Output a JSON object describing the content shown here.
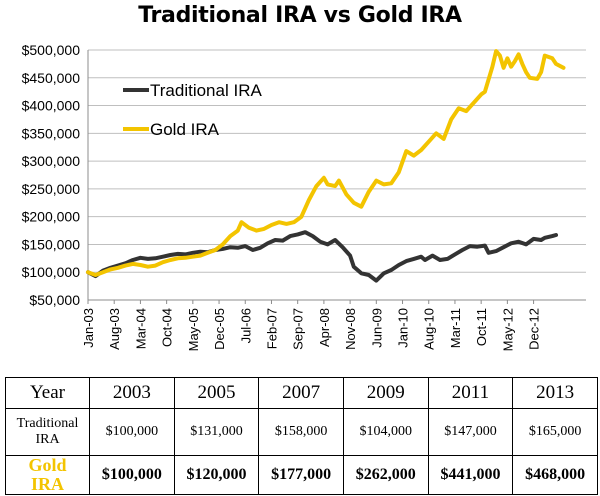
{
  "chart_data": {
    "type": "line",
    "title": "Traditional IRA vs Gold IRA",
    "ylim": [
      50000,
      500000
    ],
    "yticks": [
      50000,
      100000,
      150000,
      200000,
      250000,
      300000,
      350000,
      400000,
      450000,
      500000
    ],
    "ytick_labels": [
      "$50,000",
      "$100,000",
      "$150,000",
      "$200,000",
      "$250,000",
      "$300,000",
      "$350,000",
      "$400,000",
      "$450,000",
      "$500,000"
    ],
    "x_range": [
      0,
      133
    ],
    "xtick_labels": [
      "Jan-03",
      "Aug-03",
      "Mar-04",
      "Oct-04",
      "May-05",
      "Dec-05",
      "Jul-06",
      "Feb-07",
      "Sep-07",
      "Apr-08",
      "Nov-08",
      "Jun-09",
      "Jan-10",
      "Aug-10",
      "Mar-11",
      "Oct-11",
      "May-12",
      "Dec-12"
    ],
    "xtick_positions": [
      0,
      7,
      14,
      21,
      28,
      35,
      42,
      49,
      56,
      63,
      70,
      77,
      84,
      91,
      98,
      105,
      112,
      119
    ],
    "grid": "horizontal",
    "legend": "upper-left",
    "series": [
      {
        "name": "Traditional IRA",
        "color": "#333333",
        "points": [
          [
            0,
            100000
          ],
          [
            2,
            93000
          ],
          [
            4,
            103000
          ],
          [
            6,
            108000
          ],
          [
            8,
            112000
          ],
          [
            10,
            116000
          ],
          [
            12,
            122000
          ],
          [
            14,
            126000
          ],
          [
            16,
            124000
          ],
          [
            18,
            125000
          ],
          [
            20,
            128000
          ],
          [
            22,
            131000
          ],
          [
            24,
            133000
          ],
          [
            26,
            132000
          ],
          [
            28,
            135000
          ],
          [
            30,
            137000
          ],
          [
            32,
            136000
          ],
          [
            34,
            140000
          ],
          [
            36,
            142000
          ],
          [
            38,
            145000
          ],
          [
            40,
            144000
          ],
          [
            42,
            147000
          ],
          [
            44,
            140000
          ],
          [
            46,
            144000
          ],
          [
            48,
            152000
          ],
          [
            50,
            158000
          ],
          [
            52,
            157000
          ],
          [
            54,
            165000
          ],
          [
            56,
            168000
          ],
          [
            58,
            172000
          ],
          [
            60,
            165000
          ],
          [
            62,
            155000
          ],
          [
            64,
            150000
          ],
          [
            66,
            158000
          ],
          [
            68,
            145000
          ],
          [
            70,
            130000
          ],
          [
            71,
            110000
          ],
          [
            73,
            98000
          ],
          [
            75,
            95000
          ],
          [
            77,
            85000
          ],
          [
            79,
            98000
          ],
          [
            81,
            104000
          ],
          [
            83,
            113000
          ],
          [
            85,
            120000
          ],
          [
            87,
            124000
          ],
          [
            89,
            128000
          ],
          [
            90,
            122000
          ],
          [
            92,
            130000
          ],
          [
            94,
            122000
          ],
          [
            96,
            124000
          ],
          [
            98,
            132000
          ],
          [
            100,
            140000
          ],
          [
            102,
            147000
          ],
          [
            104,
            146000
          ],
          [
            106,
            148000
          ],
          [
            107,
            135000
          ],
          [
            109,
            138000
          ],
          [
            111,
            145000
          ],
          [
            113,
            152000
          ],
          [
            115,
            155000
          ],
          [
            117,
            150000
          ],
          [
            119,
            160000
          ],
          [
            121,
            158000
          ],
          [
            122,
            162000
          ],
          [
            124,
            165000
          ],
          [
            125,
            167000
          ]
        ]
      },
      {
        "name": "Gold IRA",
        "color": "#f3c400",
        "points": [
          [
            0,
            100000
          ],
          [
            2,
            95000
          ],
          [
            4,
            100000
          ],
          [
            6,
            105000
          ],
          [
            8,
            108000
          ],
          [
            10,
            112000
          ],
          [
            12,
            115000
          ],
          [
            14,
            113000
          ],
          [
            16,
            110000
          ],
          [
            18,
            112000
          ],
          [
            20,
            118000
          ],
          [
            22,
            122000
          ],
          [
            24,
            125000
          ],
          [
            26,
            126000
          ],
          [
            28,
            128000
          ],
          [
            30,
            130000
          ],
          [
            32,
            135000
          ],
          [
            34,
            140000
          ],
          [
            36,
            150000
          ],
          [
            38,
            165000
          ],
          [
            40,
            175000
          ],
          [
            41,
            190000
          ],
          [
            43,
            180000
          ],
          [
            45,
            175000
          ],
          [
            47,
            178000
          ],
          [
            49,
            185000
          ],
          [
            51,
            190000
          ],
          [
            53,
            187000
          ],
          [
            55,
            190000
          ],
          [
            57,
            200000
          ],
          [
            59,
            230000
          ],
          [
            61,
            255000
          ],
          [
            63,
            270000
          ],
          [
            64,
            258000
          ],
          [
            66,
            255000
          ],
          [
            67,
            265000
          ],
          [
            69,
            240000
          ],
          [
            71,
            225000
          ],
          [
            73,
            218000
          ],
          [
            75,
            245000
          ],
          [
            77,
            265000
          ],
          [
            79,
            258000
          ],
          [
            81,
            260000
          ],
          [
            83,
            280000
          ],
          [
            85,
            318000
          ],
          [
            87,
            310000
          ],
          [
            89,
            320000
          ],
          [
            91,
            335000
          ],
          [
            93,
            350000
          ],
          [
            95,
            340000
          ],
          [
            97,
            375000
          ],
          [
            99,
            395000
          ],
          [
            101,
            390000
          ],
          [
            103,
            405000
          ],
          [
            105,
            420000
          ],
          [
            106,
            425000
          ],
          [
            108,
            470000
          ],
          [
            109,
            498000
          ],
          [
            110,
            490000
          ],
          [
            111,
            468000
          ],
          [
            112,
            485000
          ],
          [
            113,
            470000
          ],
          [
            114,
            480000
          ],
          [
            115,
            492000
          ],
          [
            116,
            475000
          ],
          [
            117,
            460000
          ],
          [
            118,
            450000
          ],
          [
            120,
            448000
          ],
          [
            121,
            460000
          ],
          [
            122,
            490000
          ],
          [
            124,
            485000
          ],
          [
            125,
            475000
          ],
          [
            127,
            468000
          ]
        ]
      }
    ]
  },
  "table": {
    "header": {
      "label": "Year",
      "years": [
        "2003",
        "2005",
        "2007",
        "2009",
        "2011",
        "2013"
      ]
    },
    "traditional": {
      "label_line1": "Traditional",
      "label_line2": "IRA",
      "values": [
        "$100,000",
        "$131,000",
        "$158,000",
        "$104,000",
        "$147,000",
        "$165,000"
      ]
    },
    "gold": {
      "label_line1": "Gold",
      "label_line2": "IRA",
      "values": [
        "$100,000",
        "$120,000",
        "$177,000",
        "$262,000",
        "$441,000",
        "$468,000"
      ]
    }
  }
}
